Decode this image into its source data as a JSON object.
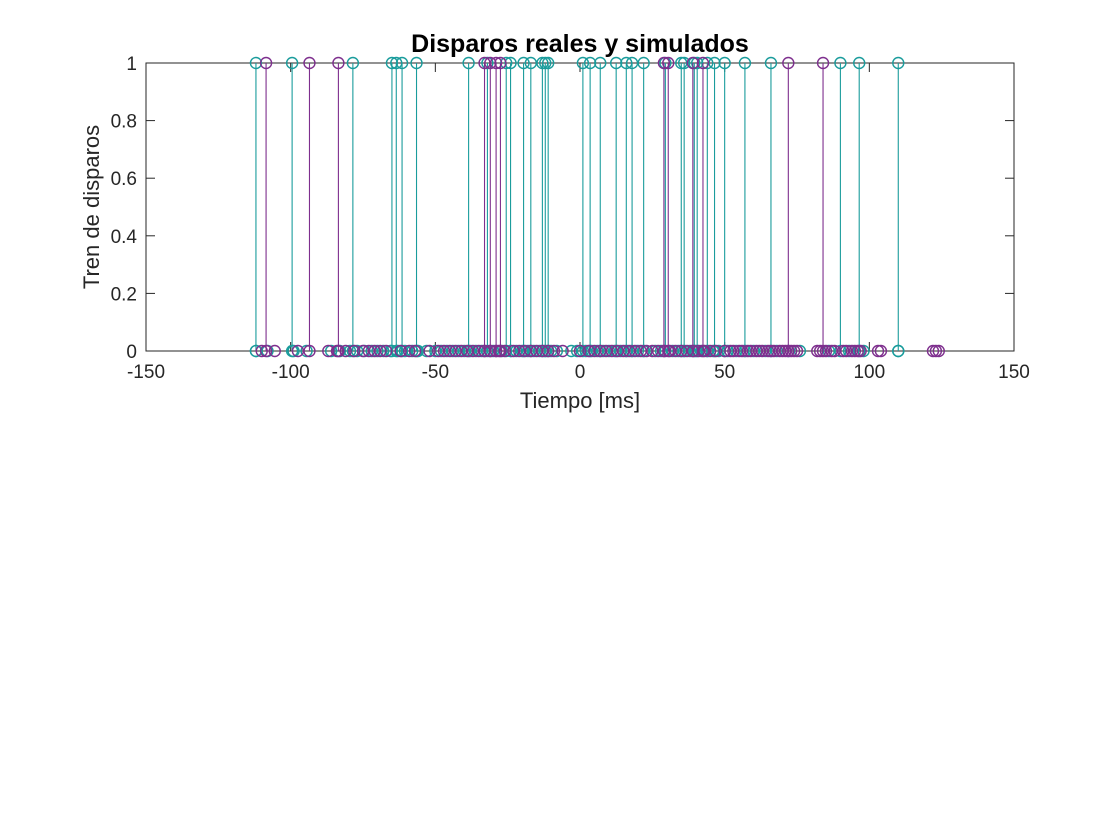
{
  "colors": {
    "real": "#7e2f8e",
    "simulated": "#1a9c9c",
    "axis": "#262626",
    "background": "#ffffff"
  },
  "chart_data": {
    "type": "stem",
    "title": "Disparos reales y simulados",
    "xlabel": "Tiempo [ms]",
    "ylabel": "Tren de disparos",
    "xlim": [
      -150,
      150
    ],
    "ylim": [
      0,
      1
    ],
    "xticks": [
      -150,
      -100,
      -50,
      0,
      50,
      100,
      150
    ],
    "xtick_labels": [
      "-150",
      "-100",
      "-50",
      "0",
      "50",
      "100",
      "150"
    ],
    "yticks": [
      0,
      0.2,
      0.4,
      0.6,
      0.8,
      1
    ],
    "ytick_labels": [
      "0",
      "0.2",
      "0.4",
      "0.6",
      "0.8",
      "1"
    ],
    "grid": false,
    "box": true,
    "series": [
      {
        "color": "#1a9c9c",
        "spikes": [
          -112,
          -99.5,
          -78.5,
          -65,
          -63.5,
          -61.5,
          -56.5,
          -38.5,
          -32,
          -25.5,
          -24,
          -19.5,
          -17,
          -13,
          -12,
          -11,
          1,
          3.5,
          7,
          12.5,
          16,
          18,
          22,
          29.5,
          35,
          36,
          39.5,
          40.5,
          44,
          46.5,
          50,
          57,
          66,
          90,
          96.5,
          110
        ],
        "zeros": [
          -112,
          -108,
          -99,
          -94.5,
          -86,
          -83,
          -79.5,
          -77,
          -74.5,
          -72,
          -70,
          -68,
          -65.5,
          -63,
          -60.5,
          -58,
          -56,
          -53,
          -50,
          -48,
          -46,
          -44,
          -42,
          -40,
          -38,
          -36,
          -34,
          -30,
          -27,
          -24,
          -22,
          -20,
          -18,
          -16,
          -14,
          -12,
          -10,
          -8,
          -3,
          -1,
          2,
          4,
          6,
          8,
          10,
          12,
          14,
          16,
          18,
          20,
          22,
          26,
          28,
          32,
          34,
          36,
          38,
          40,
          42,
          44,
          46,
          48,
          51,
          54,
          57,
          60,
          64,
          68,
          72,
          76,
          86,
          93,
          98,
          110
        ]
      },
      {
        "color": "#7e2f8e",
        "spikes": [
          -108.5,
          -93.5,
          -83.5,
          -33,
          -31,
          -29,
          -27.5,
          29,
          30.5,
          39,
          42.5,
          72,
          84
        ],
        "zeros": [
          -110,
          -105.5,
          -97.5,
          -87,
          -84,
          -81,
          -78,
          -75,
          -73,
          -71,
          -69,
          -67,
          -62,
          -59,
          -57,
          -52,
          -49,
          -47,
          -45,
          -43,
          -41,
          -39,
          -37,
          -35,
          -33,
          -31,
          -29,
          -28,
          -26,
          -23,
          -21,
          -19,
          -17,
          -15,
          -13,
          -11,
          -9,
          -6,
          0,
          3,
          5,
          7,
          9,
          11,
          13,
          15,
          17,
          19,
          21,
          23,
          25,
          27,
          29,
          31,
          33,
          35,
          37,
          39,
          41,
          43,
          45,
          47,
          50,
          52,
          53,
          55,
          56,
          58,
          59,
          61,
          62,
          63,
          65,
          66,
          67,
          69,
          70,
          71,
          73,
          74,
          75,
          82,
          83,
          85,
          87,
          88,
          91,
          92,
          94,
          95,
          96,
          97,
          103,
          104,
          122,
          123,
          124
        ]
      }
    ]
  }
}
